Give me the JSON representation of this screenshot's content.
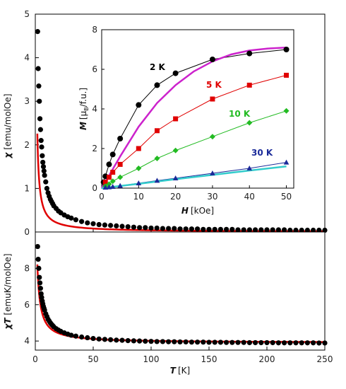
{
  "chart_data": [
    {
      "panel": "top",
      "type": "scatter",
      "xlabel": "",
      "ylabel_symbol": "χ",
      "ylabel_unit": "[emu/molOe]",
      "xlim": [
        0,
        250
      ],
      "ylim": [
        0,
        5
      ],
      "xticks": [
        0,
        50,
        100,
        150,
        200,
        250
      ],
      "yticks": [
        0,
        1,
        2,
        3,
        4,
        5
      ],
      "marker_color": "#000000",
      "fit_color": "#e00000",
      "fit_model": "curie",
      "fit_C": 3.95,
      "x": [
        2,
        2.5,
        3,
        3.5,
        4,
        4.5,
        5,
        5.5,
        6,
        6.5,
        7,
        7.5,
        8,
        9,
        10,
        11,
        12,
        13,
        14,
        15,
        16,
        18,
        20,
        22,
        25,
        28,
        31,
        35,
        40,
        45,
        50,
        55,
        60,
        65,
        70,
        75,
        80,
        85,
        90,
        95,
        100,
        105,
        110,
        115,
        120,
        125,
        130,
        135,
        140,
        145,
        150,
        155,
        160,
        165,
        170,
        175,
        180,
        185,
        190,
        195,
        200,
        205,
        210,
        215,
        220,
        225,
        230,
        235,
        240,
        245,
        250
      ],
      "y": [
        4.6,
        3.75,
        3.35,
        3.0,
        2.6,
        2.35,
        2.1,
        1.95,
        1.75,
        1.6,
        1.5,
        1.4,
        1.3,
        1.15,
        1.0,
        0.9,
        0.82,
        0.75,
        0.7,
        0.65,
        0.6,
        0.54,
        0.48,
        0.44,
        0.39,
        0.35,
        0.32,
        0.28,
        0.24,
        0.21,
        0.19,
        0.17,
        0.16,
        0.15,
        0.14,
        0.13,
        0.12,
        0.11,
        0.1,
        0.1,
        0.09,
        0.09,
        0.08,
        0.08,
        0.08,
        0.07,
        0.07,
        0.07,
        0.07,
        0.06,
        0.06,
        0.06,
        0.06,
        0.06,
        0.06,
        0.05,
        0.05,
        0.05,
        0.05,
        0.05,
        0.05,
        0.05,
        0.05,
        0.05,
        0.04,
        0.04,
        0.04,
        0.04,
        0.04,
        0.04,
        0.04
      ]
    },
    {
      "panel": "inset",
      "type": "line",
      "xlabel_symbol": "H",
      "xlabel_unit": "[kOe]",
      "ylabel": "M [μB/f.u.]",
      "xlim": [
        0,
        52
      ],
      "ylim": [
        0,
        8
      ],
      "xticks": [
        0,
        10,
        20,
        30,
        40,
        50
      ],
      "yticks": [
        0,
        2,
        4,
        6,
        8
      ],
      "series": [
        {
          "label": "2 K",
          "color": "#000000",
          "marker": "circle",
          "x": [
            0.5,
            1,
            2,
            3,
            5,
            10,
            15,
            20,
            30,
            40,
            50
          ],
          "y": [
            0.3,
            0.6,
            1.2,
            1.7,
            2.5,
            4.2,
            5.2,
            5.8,
            6.5,
            6.8,
            7.0
          ]
        },
        {
          "label": "5 K",
          "color": "#e00000",
          "marker": "square",
          "x": [
            1,
            2,
            3,
            5,
            10,
            15,
            20,
            30,
            40,
            50
          ],
          "y": [
            0.3,
            0.55,
            0.8,
            1.2,
            2.0,
            2.9,
            3.5,
            4.5,
            5.2,
            5.7
          ]
        },
        {
          "label": "10 K",
          "color": "#22bb22",
          "marker": "diamond",
          "x": [
            1,
            2,
            3,
            5,
            10,
            15,
            20,
            30,
            40,
            50
          ],
          "y": [
            0.1,
            0.2,
            0.35,
            0.55,
            1.0,
            1.5,
            1.9,
            2.6,
            3.3,
            3.9
          ]
        },
        {
          "label": "30 K",
          "color": "#1a2a99",
          "marker": "triangle",
          "x": [
            1,
            2,
            3,
            5,
            10,
            15,
            20,
            30,
            40,
            50
          ],
          "y": [
            0.03,
            0.05,
            0.07,
            0.12,
            0.25,
            0.38,
            0.5,
            0.75,
            1.0,
            1.3
          ]
        }
      ],
      "fits": [
        {
          "color": "#cc22cc",
          "x": [
            0,
            5,
            10,
            15,
            20,
            25,
            30,
            35,
            40,
            45,
            50
          ],
          "y": [
            0,
            1.6,
            3.1,
            4.3,
            5.2,
            5.9,
            6.4,
            6.75,
            6.95,
            7.05,
            7.1
          ]
        },
        {
          "color": "#33cccc",
          "x": [
            0,
            10,
            20,
            30,
            40,
            50
          ],
          "y": [
            0,
            0.22,
            0.45,
            0.67,
            0.89,
            1.1
          ]
        }
      ]
    },
    {
      "panel": "bottom",
      "type": "scatter",
      "xlabel_symbol": "T",
      "xlabel_unit": "[K]",
      "ylabel_symbol": "χT",
      "ylabel_unit": "[emuK/molOe]",
      "xlim": [
        0,
        250
      ],
      "ylim": [
        3.5,
        10
      ],
      "xticks": [
        0,
        50,
        100,
        150,
        200,
        250
      ],
      "yticks": [
        4,
        6,
        8
      ],
      "marker_color": "#000000",
      "fit_color": "#e00000",
      "fit_model": "hyperbolic",
      "fit_params": {
        "a": 3.9,
        "b": 11.0,
        "c": 0.8
      },
      "x": [
        2,
        2.5,
        3,
        3.5,
        4,
        4.5,
        5,
        5.5,
        6,
        6.5,
        7,
        7.5,
        8,
        9,
        10,
        11,
        12,
        13,
        14,
        15,
        16,
        18,
        20,
        22,
        25,
        28,
        31,
        35,
        40,
        45,
        50,
        55,
        60,
        65,
        70,
        75,
        80,
        85,
        90,
        95,
        100,
        105,
        110,
        115,
        120,
        125,
        130,
        135,
        140,
        145,
        150,
        155,
        160,
        165,
        170,
        175,
        180,
        185,
        190,
        195,
        200,
        205,
        210,
        215,
        220,
        225,
        230,
        235,
        240,
        245,
        250
      ],
      "y": [
        9.2,
        8.5,
        8.0,
        7.5,
        7.2,
        6.9,
        6.6,
        6.4,
        6.2,
        6.05,
        5.9,
        5.8,
        5.7,
        5.5,
        5.35,
        5.2,
        5.1,
        5.0,
        4.92,
        4.85,
        4.78,
        4.68,
        4.6,
        4.53,
        4.45,
        4.38,
        4.32,
        4.27,
        4.22,
        4.18,
        4.14,
        4.11,
        4.09,
        4.07,
        4.05,
        4.04,
        4.02,
        4.01,
        4.0,
        3.99,
        3.98,
        3.97,
        3.97,
        3.96,
        3.96,
        3.95,
        3.95,
        3.94,
        3.94,
        3.94,
        3.93,
        3.93,
        3.93,
        3.92,
        3.92,
        3.92,
        3.92,
        3.91,
        3.91,
        3.91,
        3.91,
        3.91,
        3.9,
        3.9,
        3.9,
        3.9,
        3.9,
        3.9,
        3.9,
        3.89,
        3.89
      ]
    }
  ]
}
